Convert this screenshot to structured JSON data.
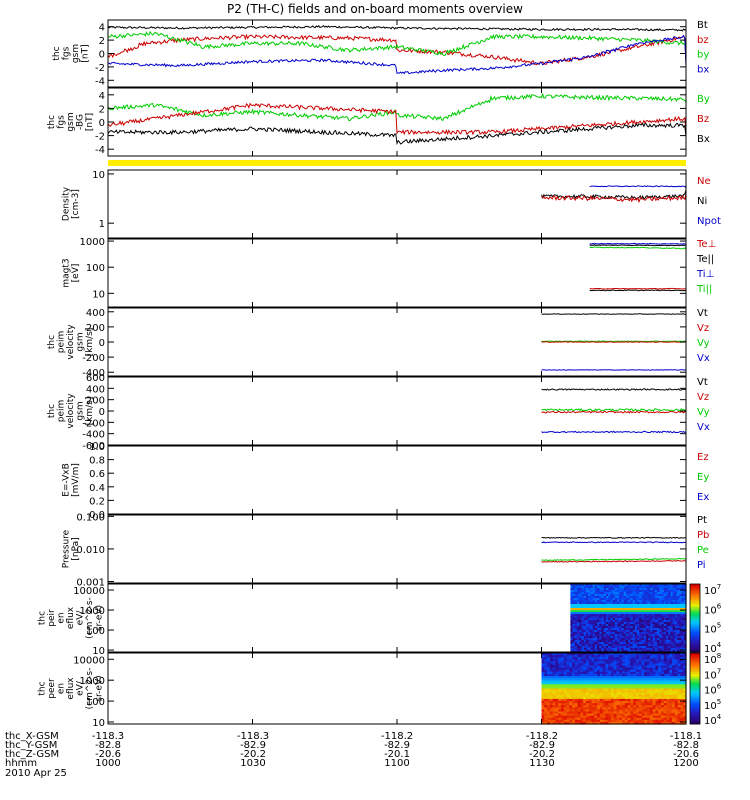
{
  "title": "P2 (TH-C) fields and on-board moments overview",
  "date_label": "2010 Apr 25",
  "ephemeris": {
    "row_labels": [
      "thc_X-GSM",
      "thc_Y-GSM",
      "thc_Z-GSM",
      "hhmm"
    ],
    "columns": [
      [
        "-118.3",
        "-82.8",
        "-20.6",
        "1000"
      ],
      [
        "-118.3",
        "-82.9",
        "-20.2",
        "1030"
      ],
      [
        "-118.2",
        "-82.9",
        "-20.1",
        "1100"
      ],
      [
        "-118.2",
        "-82.9",
        "-20.2",
        "1130"
      ],
      [
        "-118.1",
        "-82.8",
        "-20.6",
        "1200"
      ]
    ]
  },
  "colors": {
    "black": "#000000",
    "red": "#cc0000",
    "green": "#00dd00",
    "blue": "#0000cc",
    "yellow": "#ffee00"
  },
  "chart_data": [
    {
      "type": "line",
      "ylabel_lines": [
        "thc",
        "fgs",
        "gsm",
        "[nT]"
      ],
      "ylim": [
        -5,
        5
      ],
      "ticks": [
        "4",
        "2",
        "0",
        "-2",
        "-4"
      ],
      "legend": [
        {
          "name": "Bt",
          "color": "#000000"
        },
        {
          "name": "bz",
          "color": "#cc0000"
        },
        {
          "name": "by",
          "color": "#00cc00"
        },
        {
          "name": "bx",
          "color": "#0000cc"
        }
      ],
      "series": [
        {
          "color": "#000000",
          "x": [
            1000,
            1015,
            1030,
            1045,
            1100,
            1115,
            1130,
            1145,
            1200
          ],
          "y": [
            3.9,
            3.8,
            3.9,
            4.0,
            3.8,
            3.7,
            3.6,
            3.6,
            3.5
          ],
          "noise": 0.15
        },
        {
          "color": "#cc0000",
          "x": [
            1000,
            1008,
            1015,
            1022,
            1030,
            1040,
            1050,
            1060,
            1070,
            1080,
            1090,
            1100,
            1110,
            1120,
            1130,
            1140,
            1150,
            1160,
            1170,
            1180,
            1190,
            1200
          ],
          "y": [
            -0.5,
            1.5,
            2.0,
            2.3,
            2.5,
            2.4,
            2.3,
            2.0,
            1.8,
            1.5,
            1.0,
            0.5,
            0.2,
            -0.5,
            -1.5,
            -0.5,
            1.0,
            2.5,
            0.5,
            -1.0,
            -0.5,
            -1.5
          ],
          "noise": 0.3
        },
        {
          "color": "#00cc00",
          "x": [
            1000,
            1010,
            1020,
            1030,
            1040,
            1050,
            1060,
            1070,
            1080,
            1090,
            1100,
            1110,
            1120,
            1130,
            1140,
            1150,
            1160,
            1170,
            1180,
            1190,
            1200
          ],
          "y": [
            2.5,
            3.0,
            1.0,
            1.5,
            1.5,
            0.5,
            1.0,
            2.0,
            1.5,
            0.5,
            1.0,
            0.0,
            2.5,
            2.5,
            2.3,
            2.0,
            1.5,
            0.5,
            1.5,
            2.0,
            2.0
          ],
          "noise": 0.3
        },
        {
          "color": "#0000cc",
          "x": [
            1000,
            1015,
            1030,
            1045,
            1060,
            1075,
            1090,
            1100,
            1110,
            1120,
            1130,
            1140,
            1150,
            1160,
            1170,
            1180,
            1190,
            1200
          ],
          "y": [
            -1.5,
            -1.8,
            -1.2,
            -1.0,
            -1.8,
            -2.0,
            -2.8,
            -3.0,
            -2.5,
            -2.2,
            -1.5,
            -0.5,
            1.5,
            2.5,
            -1.5,
            -1.0,
            -1.5,
            -2.0
          ],
          "noise": 0.2
        }
      ]
    },
    {
      "type": "line",
      "ylabel_lines": [
        "thc",
        "fgs",
        "gsm",
        "-BG",
        "[nT]"
      ],
      "ylim": [
        -5,
        5
      ],
      "ticks": [
        "4",
        "2",
        "0",
        "-2",
        "-4"
      ],
      "legend": [
        {
          "name": "By",
          "color": "#00cc00"
        },
        {
          "name": "Bz",
          "color": "#cc0000"
        },
        {
          "name": "Bx",
          "color": "#000000"
        }
      ],
      "series": [
        {
          "color": "#00cc00",
          "x": [
            1000,
            1010,
            1020,
            1030,
            1040,
            1050,
            1060,
            1070,
            1080,
            1090,
            1100,
            1110,
            1120,
            1130,
            1140,
            1150,
            1160,
            1170,
            1180,
            1190,
            1200
          ],
          "y": [
            2.0,
            2.5,
            1.0,
            1.5,
            1.0,
            0.5,
            1.5,
            2.5,
            2.0,
            1.5,
            1.0,
            0.5,
            3.5,
            3.8,
            3.6,
            3.5,
            3.3,
            1.0,
            2.5,
            3.0,
            3.0
          ],
          "noise": 0.3
        },
        {
          "color": "#cc0000",
          "x": [
            1000,
            1015,
            1030,
            1045,
            1060,
            1075,
            1090,
            1100,
            1110,
            1120,
            1130,
            1140,
            1150,
            1160,
            1170,
            1180,
            1190,
            1200
          ],
          "y": [
            -0.5,
            1.0,
            2.5,
            2.0,
            1.5,
            0.5,
            -1.0,
            -1.5,
            -1.5,
            -1.5,
            -1.0,
            -0.5,
            0.0,
            0.5,
            -0.5,
            -1.0,
            -1.0,
            -1.5
          ],
          "noise": 0.3
        },
        {
          "color": "#000000",
          "x": [
            1000,
            1015,
            1030,
            1045,
            1060,
            1075,
            1090,
            1100,
            1110,
            1120,
            1130,
            1140,
            1150,
            1160,
            1170,
            1180,
            1190,
            1200
          ],
          "y": [
            -1.5,
            -1.5,
            -1.0,
            -1.5,
            -2.0,
            -2.5,
            -3.0,
            -3.0,
            -2.5,
            -2.0,
            -1.5,
            -1.0,
            -0.5,
            -0.5,
            -1.5,
            -1.0,
            -1.5,
            -2.0
          ],
          "noise": 0.3
        }
      ]
    },
    {
      "type": "line",
      "ylabel_lines": [
        "Density",
        "[cm-3]"
      ],
      "log": true,
      "ylim": [
        0.5,
        12
      ],
      "ticks": [
        "10",
        "1"
      ],
      "tick_values": [
        10,
        1
      ],
      "legend": [
        {
          "name": "Ne",
          "color": "#cc0000"
        },
        {
          "name": "Ni",
          "color": "#000000"
        },
        {
          "name": "Npot",
          "color": "#0000cc"
        }
      ],
      "series": [
        {
          "color": "#0000cc",
          "x": [
            1140,
            1150,
            1160,
            1170,
            1180,
            1190,
            1200
          ],
          "y": [
            5.6,
            5.6,
            5.6,
            5.5,
            5.4,
            5.3,
            5.2
          ],
          "noise": 0.02
        },
        {
          "color": "#000000",
          "x": [
            1130,
            1140,
            1150,
            1160,
            1170,
            1180,
            1190,
            1200
          ],
          "y": [
            3.5,
            3.5,
            3.3,
            3.6,
            4.8,
            4.5,
            4.3,
            4.5
          ],
          "noise": 0.08
        },
        {
          "color": "#cc0000",
          "x": [
            1130,
            1140,
            1150,
            1160,
            1170,
            1180,
            1190,
            1200
          ],
          "y": [
            3.3,
            3.2,
            3.0,
            3.3,
            4.0,
            3.8,
            3.6,
            3.7
          ],
          "noise": 0.1
        }
      ]
    },
    {
      "type": "line",
      "ylabel_lines": [
        "magt3",
        "[eV]"
      ],
      "log": true,
      "ylim": [
        3,
        1200
      ],
      "ticks": [
        "1000",
        "100",
        "10"
      ],
      "tick_values": [
        1000,
        100,
        10
      ],
      "legend": [
        {
          "name": "Te⊥",
          "color": "#cc0000"
        },
        {
          "name": "Te||",
          "color": "#000000"
        },
        {
          "name": "Ti⊥",
          "color": "#0000cc"
        },
        {
          "name": "Ti||",
          "color": "#00cc00"
        }
      ],
      "series": [
        {
          "color": "#0000cc",
          "x": [
            1140,
            1160,
            1180,
            1200
          ],
          "y": [
            800,
            780,
            760,
            770
          ],
          "noise": 0.03
        },
        {
          "color": "#000000",
          "x": [
            1140,
            1160,
            1180,
            1200
          ],
          "y": [
            700,
            680,
            690,
            700
          ],
          "noise": 0.03
        },
        {
          "color": "#00cc00",
          "x": [
            1140,
            1150,
            1160,
            1170,
            1180,
            1200
          ],
          "y": [
            580,
            560,
            520,
            540,
            580,
            600
          ],
          "noise": 0.03
        },
        {
          "color": "#cc0000",
          "x": [
            1140,
            1160,
            1180,
            1200
          ],
          "y": [
            15,
            15,
            14,
            15
          ],
          "noise": 0.03
        },
        {
          "color": "#000000",
          "x": [
            1140,
            1160,
            1180,
            1200
          ],
          "y": [
            13,
            13,
            12,
            13
          ],
          "noise": 0.03
        }
      ]
    },
    {
      "type": "line",
      "ylabel_lines": [
        "thc",
        "peim",
        "velocity",
        "gsm",
        "[km/s]"
      ],
      "ylim": [
        -450,
        450
      ],
      "ticks": [
        "400",
        "200",
        "0",
        "-200",
        "-400"
      ],
      "tick_values": [
        400,
        200,
        0,
        -200,
        -400
      ],
      "legend": [
        {
          "name": "Vt",
          "color": "#000000"
        },
        {
          "name": "Vz",
          "color": "#cc0000"
        },
        {
          "name": "Vy",
          "color": "#00cc00"
        },
        {
          "name": "Vx",
          "color": "#0000cc"
        }
      ],
      "series": [
        {
          "color": "#000000",
          "x": [
            1130,
            1200
          ],
          "y": [
            370,
            370
          ],
          "noise": 3
        },
        {
          "color": "#00cc00",
          "x": [
            1130,
            1200
          ],
          "y": [
            10,
            10
          ],
          "noise": 4
        },
        {
          "color": "#cc0000",
          "x": [
            1130,
            1200
          ],
          "y": [
            0,
            0
          ],
          "noise": 4
        },
        {
          "color": "#0000cc",
          "x": [
            1130,
            1200
          ],
          "y": [
            -370,
            -370
          ],
          "noise": 3
        }
      ]
    },
    {
      "type": "line",
      "ylabel_lines": [
        "thc",
        "peim",
        "velocity",
        "gsm",
        "[km/s]"
      ],
      "ylim": [
        -600,
        600
      ],
      "ticks": [
        "600",
        "400",
        "200",
        "0",
        "-200",
        "-400",
        "-600"
      ],
      "tick_values": [
        600,
        400,
        200,
        0,
        -200,
        -400,
        -600
      ],
      "legend": [
        {
          "name": "Vt",
          "color": "#000000"
        },
        {
          "name": "Vz",
          "color": "#cc0000"
        },
        {
          "name": "Vy",
          "color": "#00cc00"
        },
        {
          "name": "Vx",
          "color": "#0000cc"
        }
      ],
      "series": [
        {
          "color": "#000000",
          "x": [
            1130,
            1200
          ],
          "y": [
            380,
            380
          ],
          "noise": 12
        },
        {
          "color": "#00cc00",
          "x": [
            1130,
            1200
          ],
          "y": [
            20,
            20
          ],
          "noise": 18
        },
        {
          "color": "#cc0000",
          "x": [
            1130,
            1200
          ],
          "y": [
            -20,
            -20
          ],
          "noise": 14
        },
        {
          "color": "#0000cc",
          "x": [
            1130,
            1200
          ],
          "y": [
            -370,
            -370
          ],
          "noise": 12
        }
      ]
    },
    {
      "type": "line",
      "ylabel_lines": [
        "E=-VxB",
        "[mV/m]"
      ],
      "ylim": [
        0,
        1
      ],
      "ticks": [
        "1.0",
        "0.8",
        "0.6",
        "0.4",
        "0.2",
        "0.0"
      ],
      "tick_values": [
        1.0,
        0.8,
        0.6,
        0.4,
        0.2,
        0.0
      ],
      "legend": [
        {
          "name": "Ez",
          "color": "#cc0000"
        },
        {
          "name": "Ey",
          "color": "#00cc00"
        },
        {
          "name": "Ex",
          "color": "#0000cc"
        }
      ],
      "series": []
    },
    {
      "type": "line",
      "ylabel_lines": [
        "Pressure",
        "[nPa]"
      ],
      "log": true,
      "ylim": [
        0.0009,
        0.11
      ],
      "ticks": [
        "0.100",
        "0.010",
        "0.001"
      ],
      "tick_values": [
        0.1,
        0.01,
        0.001
      ],
      "legend": [
        {
          "name": "Pt",
          "color": "#000000"
        },
        {
          "name": "Pb",
          "color": "#cc0000"
        },
        {
          "name": "Pe",
          "color": "#00cc00"
        },
        {
          "name": "Pi",
          "color": "#0000cc"
        }
      ],
      "series": [
        {
          "color": "#000000",
          "x": [
            1130,
            1200
          ],
          "y": [
            0.022,
            0.022
          ],
          "noise": 0.03
        },
        {
          "color": "#0000cc",
          "x": [
            1130,
            1200
          ],
          "y": [
            0.016,
            0.016
          ],
          "noise": 0.03
        },
        {
          "color": "#00cc00",
          "x": [
            1130,
            1150,
            1170,
            1200
          ],
          "y": [
            0.0045,
            0.0048,
            0.0052,
            0.005
          ],
          "noise": 0.03
        },
        {
          "color": "#cc0000",
          "x": [
            1130,
            1150,
            1170,
            1200
          ],
          "y": [
            0.004,
            0.0042,
            0.0045,
            0.0043
          ],
          "noise": 0.03
        }
      ]
    },
    {
      "type": "heatmap",
      "ylabel_lines": [
        "thc",
        "peir",
        "en",
        "eflux",
        "eV/",
        "(cm^2-s-",
        "sr-eV)"
      ],
      "log": true,
      "ylim": [
        8,
        20000
      ],
      "ticks": [
        "10000",
        "1000",
        "100",
        "10"
      ],
      "tick_values": [
        10000,
        1000,
        100,
        10
      ],
      "x_start": 1136,
      "colorbar": {
        "ticks": [
          "10",
          "10",
          "10",
          "10"
        ],
        "exponents": [
          "7",
          "6",
          "5",
          "4"
        ]
      },
      "band_profile": "ion"
    },
    {
      "type": "heatmap",
      "ylabel_lines": [
        "thc",
        "peer",
        "en",
        "eflux",
        "eV/",
        "(cm^2-s-",
        "sr-eV)"
      ],
      "log": true,
      "ylim": [
        8,
        20000
      ],
      "ticks": [
        "10000",
        "1000",
        "100",
        "10"
      ],
      "tick_values": [
        10000,
        1000,
        100,
        10
      ],
      "x_start": 1130,
      "colorbar": {
        "ticks": [
          "10",
          "10",
          "10",
          "10",
          "10"
        ],
        "exponents": [
          "8",
          "7",
          "6",
          "5",
          "4"
        ]
      },
      "band_profile": "electron"
    }
  ]
}
